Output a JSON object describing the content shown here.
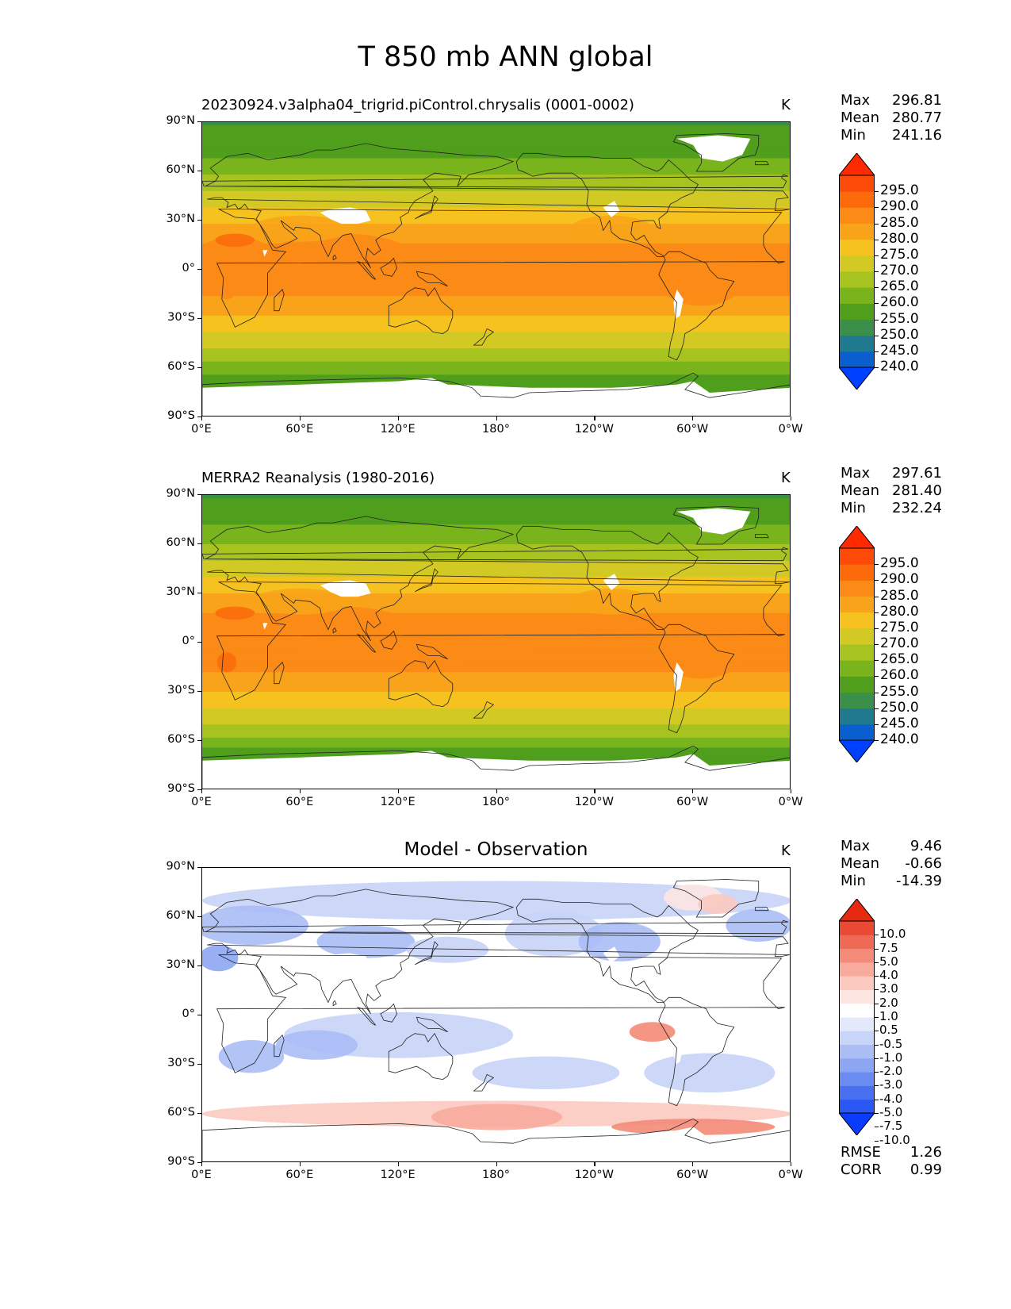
{
  "figure": {
    "title": "T 850 mb ANN global",
    "units": "K"
  },
  "axes": {
    "lat_ticks": [
      "90°N",
      "60°N",
      "30°N",
      "0°",
      "30°S",
      "60°S",
      "90°S"
    ],
    "lon_ticks": [
      "0°E",
      "60°E",
      "120°E",
      "180°",
      "120°W",
      "60°W",
      "0°W"
    ]
  },
  "colors": {
    "abs_levels": [
      "#0040ff",
      "#0a5fcf",
      "#1f7a8f",
      "#3a8f4a",
      "#4f9e1c",
      "#79b41c",
      "#a7c31f",
      "#d2c925",
      "#f5c21f",
      "#f9a31a",
      "#fb8a16",
      "#fc6a0c",
      "#fd4a08",
      "#ff2a00"
    ],
    "diff_levels": [
      "#0a3cff",
      "#2a58f5",
      "#4870f0",
      "#6a8cf0",
      "#8da6f3",
      "#aabdf5",
      "#c8d4f8",
      "#e3e9fb",
      "#ffffff",
      "#fde6e2",
      "#fbc9c0",
      "#f8ab9d",
      "#f48b78",
      "#ef6a55",
      "#ea4a34",
      "#e52a10"
    ]
  },
  "panels": [
    {
      "id": "model",
      "title": "20230924.v3alpha04_trigrid.piControl.chrysalis (0001-0002)",
      "units": "K",
      "stats": [
        {
          "label": "Max",
          "value": "296.81"
        },
        {
          "label": "Mean",
          "value": "280.77"
        },
        {
          "label": "Min",
          "value": "241.16"
        }
      ],
      "colorbar_labels": [
        "295.0",
        "290.0",
        "285.0",
        "280.0",
        "275.0",
        "270.0",
        "265.0",
        "260.0",
        "255.0",
        "250.0",
        "245.0",
        "240.0"
      ]
    },
    {
      "id": "obs",
      "title": "MERRA2 Reanalysis (1980-2016)",
      "units": "K",
      "stats": [
        {
          "label": "Max",
          "value": "297.61"
        },
        {
          "label": "Mean",
          "value": "281.40"
        },
        {
          "label": "Min",
          "value": "232.24"
        }
      ],
      "colorbar_labels": [
        "295.0",
        "290.0",
        "285.0",
        "280.0",
        "275.0",
        "270.0",
        "265.0",
        "260.0",
        "255.0",
        "250.0",
        "245.0",
        "240.0"
      ]
    },
    {
      "id": "diff",
      "title": "Model - Observation",
      "units": "K",
      "stats": [
        {
          "label": "Max",
          "value": "9.46"
        },
        {
          "label": "Mean",
          "value": "-0.66"
        },
        {
          "label": "Min",
          "value": "-14.39"
        }
      ],
      "colorbar_labels": [
        "10.0",
        "7.5",
        "5.0",
        "4.0",
        "3.0",
        "2.0",
        "1.0",
        "0.5",
        "-0.5",
        "-1.0",
        "-2.0",
        "-3.0",
        "-4.0",
        "-5.0",
        "-7.5",
        "-10.0"
      ],
      "extra_stats": [
        {
          "label": "RMSE",
          "value": "1.26"
        },
        {
          "label": "CORR",
          "value": "0.99"
        }
      ]
    }
  ],
  "chart_data": [
    {
      "type": "heatmap",
      "title": "20230924.v3alpha04_trigrid.piControl.chrysalis (0001-0002)",
      "variable": "T 850 mb",
      "units": "K",
      "xlim": [
        0,
        360
      ],
      "ylim": [
        -90,
        90
      ],
      "color_levels": [
        240,
        245,
        250,
        255,
        260,
        265,
        270,
        275,
        280,
        285,
        290,
        295
      ],
      "zonal_profile": {
        "lat": [
          90,
          75,
          60,
          45,
          30,
          15,
          0,
          -15,
          -30,
          -45,
          -60,
          -75
        ],
        "t": [
          257,
          260,
          266,
          274,
          282,
          288,
          290,
          288,
          282,
          274,
          265,
          255
        ]
      },
      "max": 296.81,
      "mean": 280.77,
      "min": 241.16
    },
    {
      "type": "heatmap",
      "title": "MERRA2 Reanalysis (1980-2016)",
      "variable": "T 850 mb",
      "units": "K",
      "xlim": [
        0,
        360
      ],
      "ylim": [
        -90,
        90
      ],
      "color_levels": [
        240,
        245,
        250,
        255,
        260,
        265,
        270,
        275,
        280,
        285,
        290,
        295
      ],
      "zonal_profile": {
        "lat": [
          90,
          75,
          60,
          45,
          30,
          15,
          0,
          -15,
          -30,
          -45,
          -60,
          -75
        ],
        "t": [
          257,
          261,
          267,
          275,
          283,
          289,
          291,
          289,
          283,
          275,
          266,
          254
        ]
      },
      "max": 297.61,
      "mean": 281.4,
      "min": 232.24
    },
    {
      "type": "heatmap",
      "title": "Model - Observation",
      "units": "K",
      "xlim": [
        0,
        360
      ],
      "ylim": [
        -90,
        90
      ],
      "color_levels": [
        -10,
        -7.5,
        -5,
        -4,
        -3,
        -2,
        -1,
        -0.5,
        0.5,
        1,
        2,
        3,
        4,
        5,
        7.5,
        10
      ],
      "max": 9.46,
      "mean": -0.66,
      "min": -14.39,
      "rmse": 1.26,
      "corr": 0.99
    }
  ]
}
